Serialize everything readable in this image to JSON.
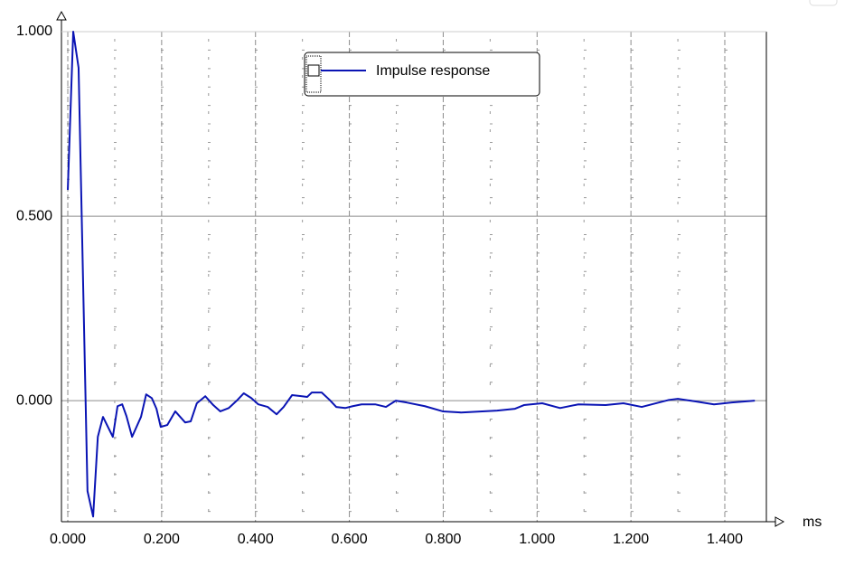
{
  "chart_data": {
    "type": "line",
    "x_label": "ms",
    "x": [
      0,
      0.0116,
      0.023,
      0.042,
      0.054,
      0.064,
      0.075,
      0.096,
      0.106,
      0.116,
      0.125,
      0.137,
      0.156,
      0.167,
      0.179,
      0.189,
      0.198,
      0.212,
      0.229,
      0.25,
      0.262,
      0.275,
      0.293,
      0.31,
      0.325,
      0.343,
      0.36,
      0.375,
      0.391,
      0.406,
      0.426,
      0.445,
      0.46,
      0.478,
      0.499,
      0.51,
      0.52,
      0.541,
      0.558,
      0.572,
      0.591,
      0.607,
      0.626,
      0.655,
      0.678,
      0.699,
      0.722,
      0.761,
      0.799,
      0.838,
      0.915,
      0.953,
      0.972,
      1.011,
      1.049,
      1.088,
      1.146,
      1.184,
      1.223,
      1.281,
      1.3,
      1.338,
      1.377,
      1.415,
      1.464
    ],
    "series": [
      {
        "name": "Impulse response",
        "color": "#0a14b4",
        "values": [
          0.571,
          1.0,
          0.902,
          -0.245,
          -0.314,
          -0.098,
          -0.044,
          -0.098,
          -0.015,
          -0.01,
          -0.042,
          -0.098,
          -0.044,
          0.017,
          0.007,
          -0.022,
          -0.071,
          -0.066,
          -0.029,
          -0.059,
          -0.056,
          -0.007,
          0.012,
          -0.012,
          -0.029,
          -0.02,
          0,
          0.02,
          0.007,
          -0.01,
          -0.017,
          -0.037,
          -0.017,
          0.015,
          0.012,
          0.01,
          0.022,
          0.022,
          0.002,
          -0.017,
          -0.02,
          -0.015,
          -0.01,
          -0.01,
          -0.017,
          0,
          -0.005,
          -0.015,
          -0.029,
          -0.032,
          -0.027,
          -0.022,
          -0.012,
          -0.007,
          -0.02,
          -0.01,
          -0.012,
          -0.007,
          -0.017,
          0.002,
          0.005,
          -0.002,
          -0.01,
          -0.005,
          0
        ]
      }
    ],
    "xlim": [
      -0.0135,
      1.4886
    ],
    "ylim": [
      -0.328,
      1.0
    ],
    "xticks": [
      {
        "value": 0,
        "label": "0.000"
      },
      {
        "value": 0.2,
        "label": "0.200"
      },
      {
        "value": 0.4,
        "label": "0.400"
      },
      {
        "value": 0.6,
        "label": "0.600"
      },
      {
        "value": 0.8,
        "label": "0.800"
      },
      {
        "value": 1.0,
        "label": "1.000"
      },
      {
        "value": 1.2,
        "label": "1.200"
      },
      {
        "value": 1.4,
        "label": "1.400"
      }
    ],
    "yticks": [
      {
        "value": 0,
        "label": "0.000"
      },
      {
        "value": 0.5,
        "label": "0.500"
      },
      {
        "value": 1.0,
        "label": "1.000"
      }
    ],
    "xminorticks": [
      0.1,
      0.3,
      0.5,
      0.7,
      0.9,
      1.1,
      1.3
    ],
    "yminorticks": [
      -0.3,
      -0.25,
      -0.2,
      -0.15,
      -0.1,
      -0.05,
      0.05,
      0.1,
      0.15,
      0.2,
      0.25,
      0.3,
      0.35,
      0.4,
      0.45,
      0.55,
      0.6,
      0.65,
      0.7,
      0.75,
      0.8,
      0.85,
      0.9,
      0.95
    ],
    "grid": true
  }
}
